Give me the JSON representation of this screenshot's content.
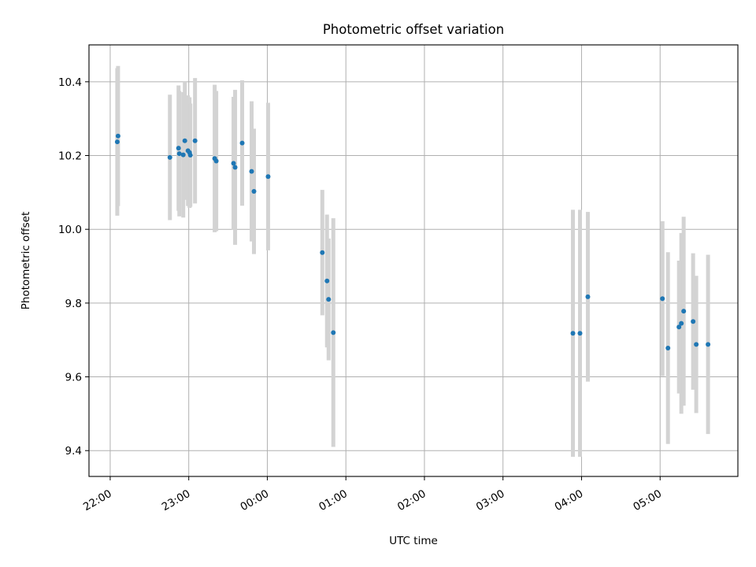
{
  "chart_data": {
    "type": "scatter",
    "title": "Photometric offset variation",
    "xlabel": "UTC time",
    "ylabel": "Photometric offset",
    "x_unit": "hours relative to 00:00 UTC",
    "xlim": [
      -2.27,
      5.99
    ],
    "ylim": [
      9.33,
      10.5
    ],
    "xticks": [
      {
        "value": -2,
        "label": "22:00"
      },
      {
        "value": -1,
        "label": "23:00"
      },
      {
        "value": 0,
        "label": "00:00"
      },
      {
        "value": 1,
        "label": "01:00"
      },
      {
        "value": 2,
        "label": "02:00"
      },
      {
        "value": 3,
        "label": "03:00"
      },
      {
        "value": 4,
        "label": "04:00"
      },
      {
        "value": 5,
        "label": "05:00"
      }
    ],
    "yticks": [
      {
        "value": 9.4,
        "label": "9.4"
      },
      {
        "value": 9.6,
        "label": "9.6"
      },
      {
        "value": 9.8,
        "label": "9.8"
      },
      {
        "value": 10.0,
        "label": "10.0"
      },
      {
        "value": 10.2,
        "label": "10.2"
      },
      {
        "value": 10.4,
        "label": "10.4"
      }
    ],
    "grid": true,
    "colors": {
      "point": "#1f77b4",
      "errorbar": "#d3d3d3",
      "grid": "#b0b0b0"
    },
    "points": [
      {
        "x": -1.91,
        "y": 10.237,
        "err": 0.2
      },
      {
        "x": -1.9,
        "y": 10.253,
        "err": 0.19
      },
      {
        "x": -1.24,
        "y": 10.195,
        "err": 0.17
      },
      {
        "x": -1.13,
        "y": 10.22,
        "err": 0.17
      },
      {
        "x": -1.12,
        "y": 10.205,
        "err": 0.17
      },
      {
        "x": -1.07,
        "y": 10.202,
        "err": 0.17
      },
      {
        "x": -1.05,
        "y": 10.24,
        "err": 0.16
      },
      {
        "x": -1.01,
        "y": 10.213,
        "err": 0.15
      },
      {
        "x": -0.99,
        "y": 10.208,
        "err": 0.15
      },
      {
        "x": -0.98,
        "y": 10.201,
        "err": 0.14
      },
      {
        "x": -0.92,
        "y": 10.24,
        "err": 0.17
      },
      {
        "x": -0.67,
        "y": 10.192,
        "err": 0.2
      },
      {
        "x": -0.65,
        "y": 10.185,
        "err": 0.19
      },
      {
        "x": -0.43,
        "y": 10.179,
        "err": 0.18
      },
      {
        "x": -0.41,
        "y": 10.168,
        "err": 0.21
      },
      {
        "x": -0.32,
        "y": 10.234,
        "err": 0.17
      },
      {
        "x": -0.2,
        "y": 10.157,
        "err": 0.19
      },
      {
        "x": -0.17,
        "y": 10.103,
        "err": 0.17
      },
      {
        "x": 0.01,
        "y": 10.143,
        "err": 0.2
      },
      {
        "x": 0.7,
        "y": 9.937,
        "err": 0.17
      },
      {
        "x": 0.76,
        "y": 9.86,
        "err": 0.18
      },
      {
        "x": 0.78,
        "y": 9.81,
        "err": 0.165
      },
      {
        "x": 0.84,
        "y": 9.72,
        "err": 0.31
      },
      {
        "x": 3.89,
        "y": 9.718,
        "err": 0.335
      },
      {
        "x": 3.98,
        "y": 9.718,
        "err": 0.335
      },
      {
        "x": 4.08,
        "y": 9.817,
        "err": 0.23
      },
      {
        "x": 5.03,
        "y": 9.812,
        "err": 0.21
      },
      {
        "x": 5.1,
        "y": 9.678,
        "err": 0.26
      },
      {
        "x": 5.24,
        "y": 9.735,
        "err": 0.18
      },
      {
        "x": 5.27,
        "y": 9.745,
        "err": 0.245
      },
      {
        "x": 5.3,
        "y": 9.778,
        "err": 0.256
      },
      {
        "x": 5.42,
        "y": 9.75,
        "err": 0.185
      },
      {
        "x": 5.46,
        "y": 9.688,
        "err": 0.186
      },
      {
        "x": 5.61,
        "y": 9.688,
        "err": 0.243
      }
    ]
  }
}
